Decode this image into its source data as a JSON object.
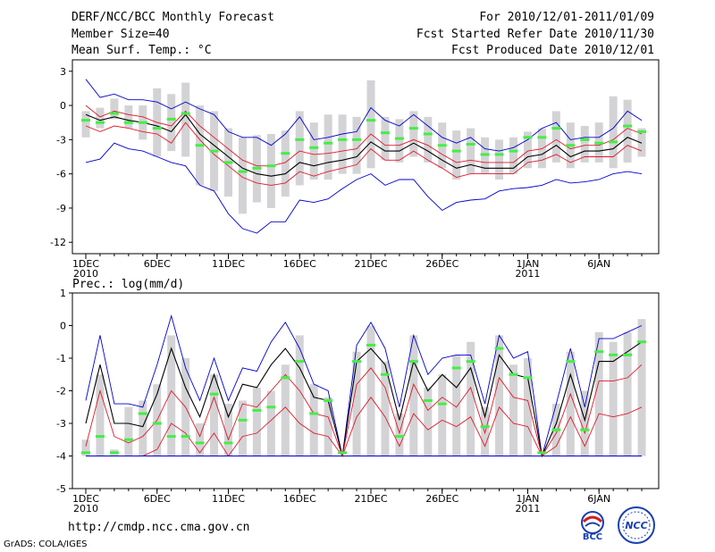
{
  "header": {
    "title": "DERF/NCC/BCC Monthly Forecast",
    "member_size": "Member Size=40",
    "variable": "Mean Surf. Temp.: °C",
    "period": "For 2010/12/01-2011/01/09",
    "started": "Fcst Started Refer Date 2010/11/30",
    "produced": "Fcst Produced Date 2010/12/01"
  },
  "footer": {
    "url": "http://cmdp.ncc.cma.gov.cn",
    "grads": "GrADS: COLA/IGES"
  },
  "logos": {
    "bcc_text": "BCC",
    "ncc_text": "NCC"
  },
  "colors": {
    "box": "#d3d3d6",
    "mean": "#000000",
    "inner": "#e0182a",
    "outer": "#0000cc",
    "median": "#44ee44"
  },
  "chart_data": [
    {
      "type": "box-ensemble",
      "title": "Mean Surf. Temp.: °C",
      "ylim": [
        -13,
        4
      ],
      "yticks": [
        3,
        0,
        -3,
        -6,
        -9,
        -12
      ],
      "xtick_labels": [
        {
          "day": 1,
          "label": "1DEC",
          "sub": "2010"
        },
        {
          "day": 6,
          "label": "6DEC"
        },
        {
          "day": 11,
          "label": "11DEC"
        },
        {
          "day": 16,
          "label": "16DEC"
        },
        {
          "day": 21,
          "label": "21DEC"
        },
        {
          "day": 26,
          "label": "26DEC"
        },
        {
          "day": 32,
          "label": "1JAN",
          "sub": "2011"
        },
        {
          "day": 37,
          "label": "6JAN"
        }
      ],
      "days": [
        1,
        2,
        3,
        4,
        5,
        6,
        7,
        8,
        9,
        10,
        11,
        12,
        13,
        14,
        15,
        16,
        17,
        18,
        19,
        20,
        21,
        22,
        23,
        24,
        25,
        26,
        27,
        28,
        29,
        30,
        31,
        32,
        33,
        34,
        35,
        36,
        37,
        38,
        39,
        40
      ],
      "box_low": [
        -2.8,
        -2,
        -1.2,
        -2,
        -3,
        -4.5,
        -4,
        -4.5,
        -7,
        -7.5,
        -8,
        -9.5,
        -8.5,
        -9,
        -8,
        -7,
        -6.5,
        -6.5,
        -6,
        -6,
        -5.5,
        -4.8,
        -5,
        -4.5,
        -5,
        -5.5,
        -6.5,
        -6,
        -6,
        -6.5,
        -6,
        -5.5,
        -5.5,
        -5,
        -5.5,
        -5,
        -5,
        -5.5,
        -5,
        -4.5
      ],
      "box_high": [
        -0.5,
        -0.2,
        0.6,
        0,
        0,
        1.5,
        1,
        2,
        0,
        -0.5,
        -2,
        -2.8,
        -2.6,
        -2.5,
        -2.2,
        -0.5,
        -1.5,
        -0.8,
        -0.8,
        -1,
        2.2,
        -1,
        -1.2,
        -0.5,
        -1,
        -1.5,
        -2.2,
        -2,
        -2.8,
        -3,
        -2.8,
        -2.3,
        -2,
        -0.5,
        -1.5,
        -1.8,
        -1.5,
        0.8,
        0.5,
        -2
      ],
      "median": [
        -1.3,
        -1.5,
        -0.7,
        -1.5,
        -1.5,
        -2,
        -1.2,
        -0.7,
        -3.5,
        -4,
        -5,
        -5.8,
        -5.5,
        -5.3,
        -4.2,
        -3,
        -3.7,
        -3.3,
        -3,
        -3,
        -1.3,
        -2.4,
        -2.9,
        -2,
        -2.5,
        -3.5,
        -4,
        -3.4,
        -4.3,
        -4.3,
        -4,
        -2.8,
        -2.8,
        -2,
        -3.5,
        -3,
        -3.3,
        -3.2,
        -1.8,
        -2.3
      ],
      "series": [
        {
          "name": "outer_upper",
          "color": "outer",
          "values": [
            2.3,
            0.7,
            1,
            0.5,
            0.5,
            0.3,
            -0.3,
            0.3,
            -0.3,
            -0.8,
            -2.3,
            -2.8,
            -2.8,
            -3.5,
            -2.5,
            -1,
            -3,
            -2.8,
            -2.5,
            -2.3,
            -0.2,
            -1.3,
            -1.8,
            -0.8,
            -1.8,
            -2.8,
            -3.3,
            -2.8,
            -3.8,
            -4,
            -3.7,
            -3,
            -2,
            -1.5,
            -3,
            -2.8,
            -2.8,
            -2,
            -0.5,
            -1.3
          ]
        },
        {
          "name": "inner_upper",
          "color": "inner",
          "values": [
            0,
            -1,
            -0.5,
            -0.8,
            -1,
            -1.5,
            -1.8,
            -0.5,
            -1.8,
            -2.8,
            -3.8,
            -4.8,
            -5.3,
            -5.3,
            -5,
            -4,
            -4.3,
            -4.2,
            -4,
            -3.8,
            -2.5,
            -3.5,
            -3.5,
            -3,
            -3.5,
            -4.3,
            -5,
            -4.8,
            -5,
            -5,
            -5,
            -4,
            -3.8,
            -3,
            -3.8,
            -3.5,
            -3.5,
            -3,
            -2,
            -2.5
          ]
        },
        {
          "name": "mean",
          "color": "mean",
          "values": [
            -0.8,
            -1.3,
            -1,
            -1.3,
            -1.5,
            -1.8,
            -2.3,
            -0.8,
            -2.5,
            -3.5,
            -4.5,
            -5.5,
            -6,
            -6.2,
            -6,
            -5,
            -5.3,
            -5,
            -4.8,
            -4.5,
            -3.2,
            -4,
            -4,
            -3.3,
            -4,
            -4.8,
            -5.5,
            -5.2,
            -5.5,
            -5.5,
            -5.5,
            -4.5,
            -4.3,
            -3.5,
            -4.5,
            -4,
            -4,
            -3.8,
            -2.8,
            -3.3
          ]
        },
        {
          "name": "inner_lower",
          "color": "inner",
          "values": [
            -1.8,
            -2.3,
            -1.8,
            -2,
            -2.3,
            -2.5,
            -3.3,
            -1.5,
            -3,
            -4.3,
            -5.3,
            -6.3,
            -6.8,
            -7,
            -6.8,
            -5.8,
            -6.2,
            -5.8,
            -5.5,
            -5.2,
            -3.8,
            -4.8,
            -4.8,
            -4,
            -4.8,
            -5.5,
            -6.3,
            -6,
            -6,
            -6,
            -6,
            -5,
            -4.8,
            -4.3,
            -5,
            -4.5,
            -4.5,
            -4.5,
            -3.5,
            -4
          ]
        },
        {
          "name": "outer_lower",
          "color": "outer",
          "values": [
            -5,
            -4.7,
            -3.3,
            -3.8,
            -4,
            -4.5,
            -5,
            -5.3,
            -7,
            -7.5,
            -9.5,
            -10.8,
            -11.2,
            -10.2,
            -10.2,
            -8.3,
            -8.5,
            -8.2,
            -7.3,
            -6.5,
            -6,
            -7,
            -6.5,
            -6.5,
            -8,
            -9.2,
            -8.5,
            -8.3,
            -8.2,
            -7.5,
            -7.3,
            -7.2,
            -7,
            -6.5,
            -6.8,
            -6.7,
            -6.5,
            -6,
            -5.8,
            -6
          ]
        }
      ]
    },
    {
      "type": "box-ensemble",
      "title": "Prec.: log(mm/d)",
      "ylim": [
        -5,
        1
      ],
      "yticks": [
        1,
        0,
        -1,
        -2,
        -3,
        -4,
        -5
      ],
      "xtick_labels": [
        {
          "day": 1,
          "label": "1DEC",
          "sub": "2010"
        },
        {
          "day": 6,
          "label": "6DEC"
        },
        {
          "day": 11,
          "label": "11DEC"
        },
        {
          "day": 16,
          "label": "16DEC"
        },
        {
          "day": 21,
          "label": "21DEC"
        },
        {
          "day": 26,
          "label": "26DEC"
        },
        {
          "day": 32,
          "label": "1JAN",
          "sub": "2011"
        },
        {
          "day": 37,
          "label": "6JAN"
        }
      ],
      "days": [
        1,
        2,
        3,
        4,
        5,
        6,
        7,
        8,
        9,
        10,
        11,
        12,
        13,
        14,
        15,
        16,
        17,
        18,
        19,
        20,
        21,
        22,
        23,
        24,
        25,
        26,
        27,
        28,
        29,
        30,
        31,
        32,
        33,
        34,
        35,
        36,
        37,
        38,
        39,
        40
      ],
      "box_low": [
        -4,
        -4,
        -4,
        -4,
        -4,
        -4,
        -4,
        -4,
        -4,
        -4,
        -4,
        -4,
        -4,
        -4,
        -4,
        -4,
        -4,
        -4,
        -4,
        -4,
        -4,
        -4,
        -4,
        -4,
        -4,
        -4,
        -4,
        -4,
        -4,
        -4,
        -4,
        -4,
        -4,
        -4,
        -4,
        -4,
        -4,
        -4,
        -4,
        -4
      ],
      "box_high": [
        -3.5,
        -1.5,
        -3.8,
        -2.5,
        -2.3,
        -1.8,
        -0.3,
        -1,
        -3,
        -1.5,
        -2.4,
        -2.3,
        -1.9,
        -2,
        -1.2,
        -0.3,
        -1.8,
        -2.2,
        -4,
        -0.8,
        0,
        -1.1,
        -2.7,
        -0.3,
        -1.9,
        -1.5,
        -0.9,
        -0.5,
        -2.5,
        -0.3,
        -1.2,
        -1,
        -4,
        -2.4,
        -0.8,
        -2,
        -0.2,
        -0.5,
        -0.2,
        0.2
      ],
      "median": [
        -3.9,
        -3.4,
        -3.9,
        -3.5,
        -2.7,
        -3,
        -3.4,
        -3.4,
        -3.6,
        -2.1,
        -3.6,
        -2.9,
        -2.6,
        -2.5,
        -1.6,
        -1.1,
        -2.7,
        -2.3,
        -3.9,
        -1.1,
        -0.6,
        -1.5,
        -3.4,
        -1.1,
        -2.3,
        -2.4,
        -1.3,
        -1.1,
        -3.1,
        -0.7,
        -1.5,
        -1.6,
        -3.9,
        -3.2,
        -1.1,
        -3.2,
        -0.8,
        -0.9,
        -0.9,
        -0.5
      ],
      "series": [
        {
          "name": "outer_upper",
          "color": "outer",
          "values": [
            -2.3,
            -0.3,
            -2.4,
            -2.4,
            -2.5,
            -1.2,
            0.3,
            -1.3,
            -2.3,
            -1,
            -2.3,
            -1.3,
            -1.4,
            -0.5,
            0.1,
            -0.7,
            -1.8,
            -2,
            -4,
            -0.6,
            0.1,
            -0.7,
            -2.5,
            -0.3,
            -1.5,
            -1,
            -0.9,
            -0.9,
            -2.4,
            -0.3,
            -1,
            -0.8,
            -4,
            -2.4,
            -0.7,
            -2.5,
            -0.4,
            -0.4,
            -0.2,
            0
          ]
        },
        {
          "name": "mean",
          "color": "mean",
          "values": [
            -3,
            -1.2,
            -3,
            -3,
            -3.1,
            -2.1,
            -0.7,
            -1.9,
            -2.8,
            -1.5,
            -2.8,
            -1.8,
            -1.9,
            -1.2,
            -0.7,
            -1.3,
            -2.2,
            -2.3,
            -4,
            -1.1,
            -0.7,
            -1.2,
            -2.9,
            -1.1,
            -2,
            -1.5,
            -1.9,
            -1.3,
            -2.8,
            -0.9,
            -1.5,
            -1.6,
            -4,
            -3,
            -1.5,
            -2.9,
            -1.1,
            -1.1,
            -0.8,
            -0.5
          ]
        },
        {
          "name": "inner_upper",
          "color": "inner",
          "values": [
            -3.7,
            -2,
            -3.4,
            -3.6,
            -3.4,
            -2.9,
            -2,
            -2.5,
            -3.4,
            -2.2,
            -3.5,
            -2.4,
            -2.5,
            -2,
            -1.5,
            -2,
            -2.7,
            -2.8,
            -4,
            -1.8,
            -1.3,
            -1.9,
            -3.3,
            -1.8,
            -2.6,
            -2.2,
            -2.5,
            -1.9,
            -3.3,
            -1.6,
            -2.2,
            -2.3,
            -4,
            -3.3,
            -2.1,
            -3.3,
            -1.7,
            -1.7,
            -1.6,
            -1.2
          ]
        },
        {
          "name": "inner_lower",
          "color": "inner",
          "values": [
            -4,
            -4,
            -4,
            -4,
            -4,
            -3.8,
            -3,
            -3.3,
            -3.9,
            -3.3,
            -4,
            -3.4,
            -3.3,
            -2.9,
            -2.5,
            -3,
            -3.3,
            -3.4,
            -4,
            -2.8,
            -2.2,
            -2.8,
            -3.7,
            -2.7,
            -3.2,
            -2.9,
            -3.1,
            -2.8,
            -3.7,
            -2.5,
            -3,
            -3.1,
            -4,
            -3.7,
            -2.8,
            -3.7,
            -2.7,
            -2.8,
            -2.7,
            -2.5
          ]
        },
        {
          "name": "outer_lower",
          "color": "outer",
          "values": [
            -4,
            -4,
            -4,
            -4,
            -4,
            -4,
            -4,
            -4,
            -4,
            -4,
            -4,
            -4,
            -4,
            -4,
            -4,
            -4,
            -4,
            -4,
            -4,
            -4,
            -4,
            -4,
            -4,
            -4,
            -4,
            -4,
            -4,
            -4,
            -4,
            -4,
            -4,
            -4,
            -4,
            -4,
            -4,
            -4,
            -4,
            -4,
            -4,
            -4
          ]
        }
      ]
    }
  ]
}
